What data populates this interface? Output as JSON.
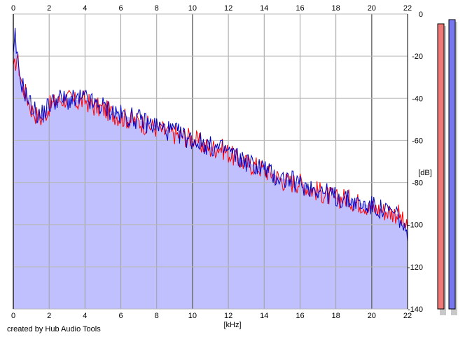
{
  "chart_data": {
    "type": "area",
    "xlabel": "[kHz]",
    "ylabel": "[dB]",
    "xlim": [
      0,
      22
    ],
    "ylim": [
      -140,
      0
    ],
    "x_ticks": [
      0,
      2,
      4,
      6,
      8,
      10,
      12,
      14,
      16,
      18,
      20,
      22
    ],
    "y_ticks": [
      0,
      -20,
      -40,
      -60,
      -80,
      -100,
      -120,
      -140
    ],
    "x_tick_labels": [
      "0",
      "2",
      "4",
      "6",
      "8",
      "10",
      "12",
      "14",
      "16",
      "18",
      "20",
      "22"
    ],
    "y_tick_labels": [
      "0",
      "-20",
      "-40",
      "-60",
      "-80",
      "-100",
      "-120",
      "-140"
    ],
    "grid": true,
    "fill_color": "#c0c0ff",
    "series": [
      {
        "color": "#ff0000",
        "x": [
          0.0,
          0.2,
          0.5,
          0.8,
          1.0,
          1.3,
          1.6,
          2.0,
          2.5,
          3.0,
          3.5,
          4.0,
          4.5,
          5.0,
          5.5,
          6.0,
          6.5,
          7.0,
          7.5,
          8.0,
          8.5,
          9.0,
          9.5,
          10.0,
          10.5,
          11.0,
          11.5,
          12.0,
          12.5,
          13.0,
          13.5,
          14.0,
          14.5,
          15.0,
          15.5,
          16.0,
          16.5,
          17.0,
          17.5,
          18.0,
          18.5,
          19.0,
          19.5,
          20.0,
          20.5,
          21.0,
          21.5,
          22.0
        ],
        "values": [
          -28,
          -20,
          -34,
          -40,
          -45,
          -48,
          -50,
          -44,
          -41,
          -40,
          -42,
          -41,
          -44,
          -45,
          -47,
          -49,
          -50,
          -51,
          -53,
          -54,
          -56,
          -57,
          -58,
          -59,
          -62,
          -64,
          -63,
          -66,
          -69,
          -71,
          -72,
          -74,
          -76,
          -79,
          -80,
          -80,
          -83,
          -84,
          -86,
          -88,
          -87,
          -89,
          -90,
          -92,
          -93,
          -94,
          -95,
          -103
        ]
      },
      {
        "color": "#0000cc",
        "x": [
          0.0,
          0.1,
          0.3,
          0.6,
          0.9,
          1.2,
          1.5,
          2.0,
          2.5,
          3.0,
          3.5,
          4.0,
          4.5,
          5.0,
          5.5,
          6.0,
          6.5,
          7.0,
          7.5,
          8.0,
          8.5,
          9.0,
          9.5,
          10.0,
          10.5,
          11.0,
          11.5,
          12.0,
          12.5,
          13.0,
          13.5,
          14.0,
          14.5,
          15.0,
          15.5,
          16.0,
          16.5,
          17.0,
          17.5,
          18.0,
          18.5,
          19.0,
          19.5,
          20.0,
          20.5,
          21.0,
          21.5,
          22.0
        ],
        "values": [
          -22,
          -11,
          -28,
          -36,
          -42,
          -46,
          -49,
          -43,
          -40,
          -41,
          -41,
          -40,
          -43,
          -44,
          -46,
          -48,
          -49,
          -50,
          -52,
          -53,
          -55,
          -56,
          -58,
          -60,
          -61,
          -63,
          -64,
          -65,
          -68,
          -70,
          -72,
          -73,
          -77,
          -78,
          -79,
          -81,
          -82,
          -83,
          -85,
          -87,
          -88,
          -89,
          -91,
          -91,
          -93,
          -94,
          -96,
          -108
        ]
      }
    ],
    "channel_meters": [
      {
        "color": "#ee7777",
        "level": -2
      },
      {
        "color": "#7777ee",
        "level": 0
      }
    ]
  },
  "credit": "created by Hub Audio Tools"
}
